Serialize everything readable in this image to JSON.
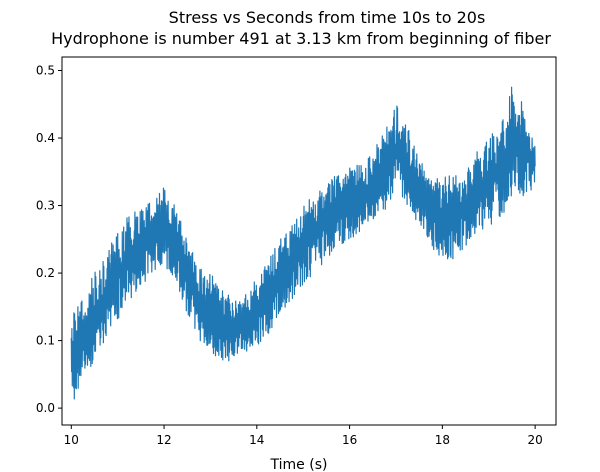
{
  "chart_data": {
    "type": "line",
    "title": "Stress vs Seconds from time 10s to 20s",
    "subtitle": "Hydrophone is number 491 at 3.13 km from beginning of fiber",
    "xlabel": "Time (s)",
    "ylabel": "",
    "xlim": [
      9.8,
      20.45
    ],
    "ylim": [
      -0.025,
      0.52
    ],
    "x_ticks": [
      10,
      12,
      14,
      16,
      18,
      20
    ],
    "y_ticks": [
      0.0,
      0.1,
      0.2,
      0.3,
      0.4,
      0.5
    ],
    "x_tick_labels": [
      "10",
      "12",
      "14",
      "16",
      "18",
      "20"
    ],
    "y_tick_labels": [
      "0.0",
      "0.1",
      "0.2",
      "0.3",
      "0.4",
      "0.5"
    ],
    "grid": false,
    "series": [
      {
        "color": "#1f77b4",
        "x": [
          10.0,
          10.25,
          10.5,
          10.75,
          11.0,
          11.25,
          11.5,
          11.75,
          12.0,
          12.25,
          12.5,
          12.75,
          13.0,
          13.25,
          13.5,
          13.75,
          14.0,
          14.25,
          14.5,
          14.75,
          15.0,
          15.25,
          15.5,
          15.75,
          16.0,
          16.25,
          16.5,
          16.75,
          17.0,
          17.25,
          17.5,
          17.75,
          18.0,
          18.25,
          18.5,
          18.75,
          19.0,
          19.25,
          19.5,
          19.75,
          20.0
        ],
        "y_upper": [
          0.14,
          0.17,
          0.2,
          0.23,
          0.26,
          0.29,
          0.3,
          0.31,
          0.33,
          0.3,
          0.25,
          0.21,
          0.2,
          0.18,
          0.16,
          0.17,
          0.2,
          0.22,
          0.25,
          0.27,
          0.3,
          0.32,
          0.33,
          0.35,
          0.36,
          0.36,
          0.38,
          0.41,
          0.45,
          0.42,
          0.37,
          0.34,
          0.34,
          0.35,
          0.35,
          0.38,
          0.4,
          0.42,
          0.49,
          0.46,
          0.4
        ],
        "y_lower": [
          0.0,
          0.04,
          0.07,
          0.1,
          0.13,
          0.16,
          0.18,
          0.2,
          0.21,
          0.19,
          0.14,
          0.1,
          0.08,
          0.07,
          0.07,
          0.08,
          0.09,
          0.11,
          0.14,
          0.16,
          0.18,
          0.2,
          0.22,
          0.24,
          0.25,
          0.26,
          0.27,
          0.29,
          0.32,
          0.3,
          0.27,
          0.24,
          0.22,
          0.22,
          0.24,
          0.26,
          0.27,
          0.28,
          0.3,
          0.31,
          0.33
        ]
      }
    ]
  }
}
